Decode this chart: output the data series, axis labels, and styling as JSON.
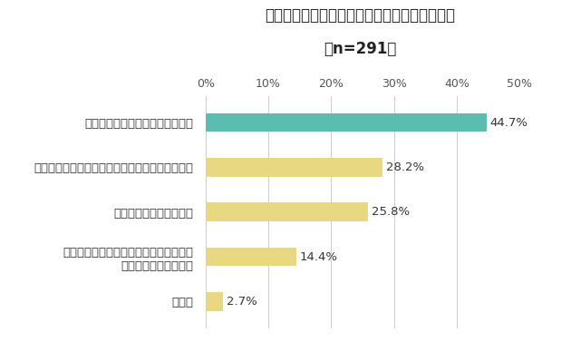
{
  "title_line1": "同一労働同一賃金への準備が進んでいない理由",
  "title_line2": "（n=291）",
  "categories": [
    "他に優先するべき業務が多いから",
    "該当する雇用者が少ない（もしくはいない）から",
    "特に急いではいないから",
    "非正規雇用の従業員との直接雇用契約を\n継続しない予定だから",
    "その他"
  ],
  "values": [
    44.7,
    28.2,
    25.8,
    14.4,
    2.7
  ],
  "bar_colors": [
    "#5bbcb0",
    "#e8d882",
    "#e8d882",
    "#e8d882",
    "#e8d882"
  ],
  "xlim": [
    0,
    50
  ],
  "xticks": [
    0,
    10,
    20,
    30,
    40,
    50
  ],
  "xtick_labels": [
    "0%",
    "10%",
    "20%",
    "30%",
    "40%",
    "50%"
  ],
  "background_color": "#ffffff",
  "title_fontsize": 12,
  "label_fontsize": 9.5,
  "value_fontsize": 9.5,
  "bar_height": 0.42
}
